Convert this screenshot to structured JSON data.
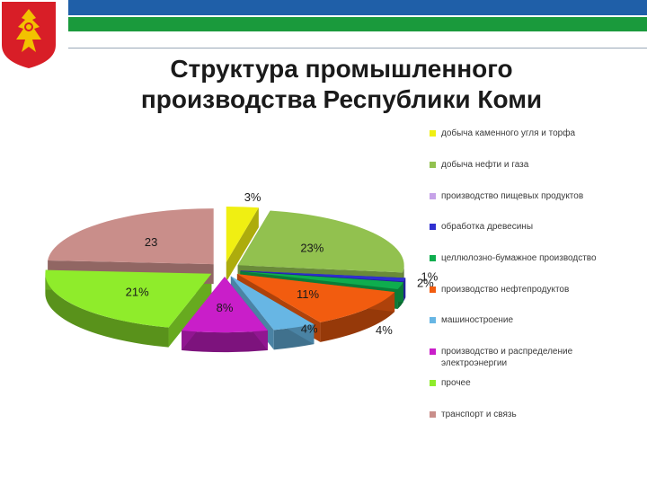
{
  "header": {
    "title_line1": "Структура промышленного",
    "title_line2": "производства Республики Коми"
  },
  "colors": {
    "stripe_blue": "#1f5fa8",
    "stripe_green": "#1a9a3c",
    "emblem_bg": "#d81e27",
    "emblem_fg": "#f2c200"
  },
  "chart_data": {
    "type": "pie",
    "style": "3d-exploded",
    "legend_position": "right",
    "series": [
      {
        "name": "добыча каменного угля и торфа",
        "value": 3,
        "label": "3%",
        "color": "#f0ef12"
      },
      {
        "name": "добыча нефти и газа",
        "value": 23,
        "label": "23%",
        "color": "#92c14f"
      },
      {
        "name": "производство пищевых продуктов",
        "value": 0,
        "label": "",
        "color": "#c6a2e8"
      },
      {
        "name": "обработка древесины",
        "value": 1,
        "label": "1%",
        "color": "#2f2fd0"
      },
      {
        "name": "целлюлозно-бумажное производство",
        "value": 2,
        "label": "2%",
        "color": "#0ead4e"
      },
      {
        "name": "производство нефтепродуктов",
        "value": 11,
        "label": "11%",
        "color": "#f25c0f"
      },
      {
        "name": "машиностроение",
        "value": 4,
        "label": "4%",
        "color": "#67b6e4"
      },
      {
        "name": "производство и распределение электроэнергии",
        "value": 8,
        "label": "8%",
        "color": "#c91ec9"
      },
      {
        "name": "прочее",
        "value": 21,
        "label": "21%",
        "color": "#8fec2b"
      },
      {
        "name": "транспорт и связь",
        "value": 23,
        "label": "23",
        "color": "#c98e8a"
      }
    ],
    "extra_label": "4%"
  }
}
